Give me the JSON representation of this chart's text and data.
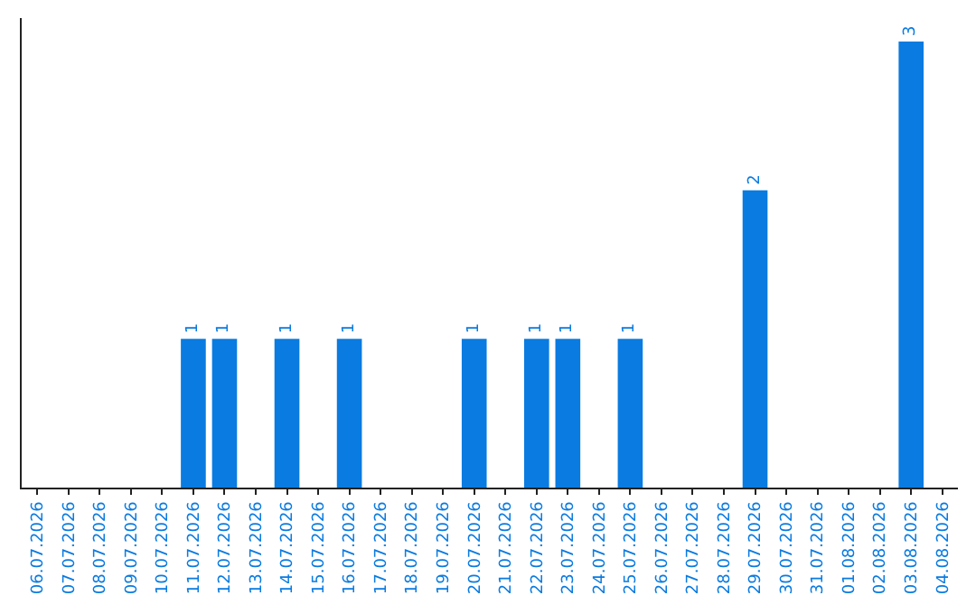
{
  "chart_data": {
    "type": "bar",
    "categories": [
      "06.07.2026",
      "07.07.2026",
      "08.07.2026",
      "09.07.2026",
      "10.07.2026",
      "11.07.2026",
      "12.07.2026",
      "13.07.2026",
      "14.07.2026",
      "15.07.2026",
      "16.07.2026",
      "17.07.2026",
      "18.07.2026",
      "19.07.2026",
      "20.07.2026",
      "21.07.2026",
      "22.07.2026",
      "23.07.2026",
      "24.07.2026",
      "25.07.2026",
      "26.07.2026",
      "27.07.2026",
      "28.07.2026",
      "29.07.2026",
      "30.07.2026",
      "31.07.2026",
      "01.08.2026",
      "02.08.2026",
      "03.08.2026",
      "04.08.2026"
    ],
    "values": [
      0,
      0,
      0,
      0,
      0,
      1,
      1,
      0,
      1,
      0,
      1,
      0,
      0,
      0,
      1,
      0,
      1,
      1,
      0,
      1,
      0,
      0,
      0,
      2,
      0,
      0,
      0,
      0,
      3,
      0
    ],
    "value_labels": [
      null,
      null,
      null,
      null,
      null,
      "1",
      "1",
      null,
      "1",
      null,
      "1",
      null,
      null,
      null,
      "1",
      null,
      "1",
      "1",
      null,
      "1",
      null,
      null,
      null,
      "2",
      null,
      null,
      null,
      null,
      "3",
      null
    ],
    "color": "#0a7be0",
    "tick_labels": "x"
  }
}
